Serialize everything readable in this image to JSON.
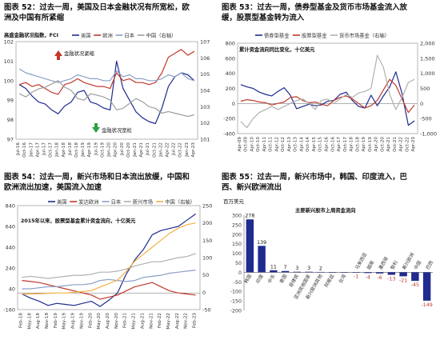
{
  "panel_tl": {
    "caption": [
      "图表 52：过去一周，美国及日本金融状况有所宽松，欧",
      "洲及中国有所紧缩"
    ],
    "subtitle": "高盛金融状况指数，FCI",
    "legend": [
      "美国",
      "欧洲",
      "日本",
      "中国（右轴）"
    ],
    "ann_top": "金融状况紧缩",
    "ann_bottom": "金融状况宽松",
    "colors": [
      "#1f2b8e",
      "#c0392b",
      "#8aa0c8",
      "#9e9e9e"
    ]
  },
  "panel_tr": {
    "caption": [
      "图表 53：过去一周，债券型基金及货币市场基金流入放",
      "缓，股票型基金转为流入"
    ],
    "subtitle": "累计资金流向同比变化，十亿美元",
    "legend": [
      "债券型基金",
      "股票型基金",
      "货币市场基金（右轴）"
    ],
    "colors": [
      "#1f2b8e",
      "#c0392b",
      "#b0b0b0"
    ]
  },
  "panel_bl": {
    "caption": [
      "图表 54：过去一周，新兴市场和日本流出放缓，中国和",
      "欧洲流出加速，美国流入加速"
    ],
    "subtitle": "2015年以来，股票型基金累计资金流向，十亿美元",
    "legend": [
      "美国",
      "发达欧洲",
      "日本",
      "新兴市场",
      "中国（右轴）"
    ],
    "colors": [
      "#1f2b8e",
      "#c0392b",
      "#8aa0c8",
      "#b0b0b0",
      "#f5b041"
    ]
  },
  "panel_br": {
    "caption": [
      "图表 55：过去一周，新兴市场中，韩国、印度流入，巴",
      "西、新兴欧洲流出"
    ],
    "unit": "百万美元",
    "subtitle": "主要新兴股市上周资金流向"
  },
  "chart_data": [
    {
      "type": "line",
      "title": "高盛金融状况指数，FCI",
      "x_ticks": [
        "Jul-16",
        "Oct-16",
        "Jan-17",
        "Apr-17",
        "Jul-17",
        "Oct-17",
        "Jan-18",
        "Apr-18",
        "Jul-18",
        "Oct-18",
        "Jan-19",
        "Apr-19",
        "Jul-19",
        "Oct-19",
        "Jan-20",
        "Apr-20",
        "Jul-20",
        "Oct-20",
        "Jan-21",
        "Apr-21",
        "Jul-21",
        "Oct-21",
        "Jan-22",
        "Apr-22",
        "Jul-22",
        "Oct-22",
        "Jan-23",
        "Apr-23"
      ],
      "ylim": [
        97,
        102
      ],
      "y_ticks": [
        97,
        98,
        99,
        100,
        101,
        102
      ],
      "y2lim": [
        101,
        107
      ],
      "y2_ticks": [
        101,
        102,
        103,
        104,
        105,
        106,
        107
      ],
      "series": [
        {
          "name": "美国",
          "values": [
            99.8,
            99.6,
            99.2,
            98.9,
            98.8,
            98.5,
            98.3,
            98.7,
            98.9,
            99.4,
            99.5,
            98.9,
            98.8,
            98.6,
            98.5,
            101.0,
            99.6,
            99.0,
            98.4,
            98.1,
            97.9,
            97.8,
            98.6,
            99.7,
            100.2,
            100.4,
            100.3,
            100.0
          ]
        },
        {
          "name": "欧洲",
          "values": [
            99.8,
            99.9,
            99.7,
            99.8,
            99.6,
            99.4,
            99.3,
            99.8,
            99.9,
            100.1,
            99.9,
            99.8,
            99.7,
            99.7,
            99.6,
            100.4,
            100.0,
            100.1,
            99.9,
            99.9,
            99.8,
            99.9,
            100.4,
            101.2,
            101.4,
            101.6,
            101.3,
            101.5
          ]
        },
        {
          "name": "日本",
          "values": [
            100.6,
            100.4,
            100.3,
            100.2,
            100.1,
            100.0,
            99.9,
            100.0,
            100.1,
            100.3,
            100.2,
            100.1,
            100.1,
            100.0,
            100.0,
            100.5,
            100.2,
            100.3,
            100.1,
            100.1,
            100.0,
            100.0,
            100.1,
            100.3,
            100.2,
            100.4,
            100.1,
            100.0
          ]
        },
        {
          "name": "中国（右轴）",
          "values": [
            103.8,
            103.6,
            103.9,
            104.1,
            104.2,
            104.4,
            104.6,
            104.2,
            104.0,
            103.5,
            103.4,
            103.8,
            103.7,
            103.6,
            103.4,
            102.8,
            102.9,
            103.2,
            103.5,
            103.3,
            103.0,
            102.9,
            102.6,
            102.7,
            102.6,
            102.5,
            102.4,
            102.5
          ]
        }
      ]
    },
    {
      "type": "line",
      "title": "累计资金流向同比变化，十亿美元",
      "x_ticks": [
        "Apr-09",
        "Oct-09",
        "Apr-10",
        "Oct-10",
        "Apr-11",
        "Oct-11",
        "Apr-12",
        "Oct-12",
        "Apr-13",
        "Oct-13",
        "Apr-14",
        "Oct-14",
        "Apr-15",
        "Oct-15",
        "Apr-16",
        "Oct-16",
        "Apr-17",
        "Oct-17",
        "Apr-18",
        "Oct-18",
        "Apr-19",
        "Oct-19",
        "Apr-20",
        "Oct-20",
        "Apr-21",
        "Oct-21",
        "Apr-22",
        "Oct-22",
        "Apr-23"
      ],
      "ylim": [
        -400,
        800
      ],
      "y_ticks": [
        -400,
        -200,
        0,
        200,
        400,
        600,
        800
      ],
      "y2lim": [
        -1000,
        2000
      ],
      "y2_ticks": [
        -1000,
        -500,
        0,
        500,
        1000,
        1500,
        2000
      ],
      "series": [
        {
          "name": "债券型基金",
          "values": [
            250,
            220,
            200,
            150,
            120,
            100,
            160,
            210,
            110,
            -70,
            -40,
            -10,
            -30,
            -20,
            30,
            40,
            120,
            150,
            40,
            -40,
            -60,
            110,
            -30,
            100,
            220,
            420,
            130,
            -290,
            -230
          ]
        },
        {
          "name": "股票型基金",
          "values": [
            30,
            50,
            40,
            20,
            10,
            -20,
            0,
            20,
            80,
            90,
            40,
            10,
            20,
            -10,
            -30,
            40,
            80,
            100,
            60,
            0,
            -60,
            -30,
            40,
            180,
            320,
            240,
            60,
            -120,
            -20
          ]
        },
        {
          "name": "货币市场基金（右轴）",
          "values": [
            -600,
            -800,
            -500,
            -300,
            -200,
            -100,
            -200,
            -100,
            0,
            100,
            150,
            0,
            -200,
            100,
            150,
            0,
            150,
            300,
            200,
            350,
            400,
            500,
            1600,
            1200,
            300,
            -200,
            200,
            700,
            800
          ]
        }
      ]
    },
    {
      "type": "line",
      "title": "2015年以来，股票型基金累计资金流向，十亿美元",
      "x_ticks": [
        "Feb-18",
        "May-18",
        "Aug-18",
        "Nov-18",
        "Feb-19",
        "May-19",
        "Aug-19",
        "Nov-19",
        "Feb-20",
        "May-20",
        "Aug-20",
        "Nov-20",
        "Feb-21",
        "May-21",
        "Aug-21",
        "Nov-21",
        "Feb-22",
        "May-22",
        "Aug-22",
        "Nov-22",
        "Feb-23"
      ],
      "ylim": [
        -160,
        840
      ],
      "y_ticks": [
        -160,
        40,
        240,
        440,
        640,
        840
      ],
      "y2lim": [
        -50,
        250
      ],
      "y2_ticks": [
        -50,
        0,
        50,
        100,
        150,
        200,
        250
      ],
      "series": [
        {
          "name": "美国",
          "values": [
            -10,
            -50,
            -80,
            -120,
            -100,
            -110,
            -120,
            -100,
            -80,
            -130,
            -70,
            0,
            180,
            320,
            420,
            560,
            600,
            620,
            640,
            700,
            760
          ]
        },
        {
          "name": "发达欧洲",
          "values": [
            120,
            110,
            100,
            80,
            60,
            40,
            20,
            0,
            -20,
            -60,
            -40,
            -20,
            20,
            60,
            80,
            100,
            60,
            20,
            0,
            -10,
            -20
          ]
        },
        {
          "name": "日本",
          "values": [
            40,
            40,
            50,
            60,
            60,
            70,
            80,
            80,
            90,
            120,
            130,
            120,
            110,
            120,
            150,
            160,
            170,
            190,
            200,
            210,
            220
          ]
        },
        {
          "name": "新兴市场",
          "values": [
            150,
            160,
            150,
            140,
            150,
            160,
            170,
            170,
            180,
            200,
            200,
            210,
            230,
            260,
            280,
            300,
            300,
            320,
            340,
            350,
            380
          ]
        },
        {
          "name": "中国（右轴）",
          "values": [
            -5,
            -5,
            -4,
            -3,
            -2,
            -2,
            0,
            2,
            5,
            15,
            25,
            35,
            60,
            90,
            110,
            130,
            150,
            170,
            185,
            195,
            200
          ]
        }
      ]
    },
    {
      "type": "bar",
      "title": "主要新兴股市上周资金流向",
      "ylabel": "百万美元",
      "y_ticks": [
        -200,
        -150,
        -100,
        -50,
        0,
        50,
        100,
        150,
        200,
        250,
        300
      ],
      "ylim": [
        -200,
        300
      ],
      "categories": [
        "韩国",
        "印度",
        "中东",
        "泰国",
        "菲律宾",
        "亚洲其他国家",
        "新兴欧洲其他",
        "阿根廷",
        "台湾",
        "马来西亚",
        "越南",
        "墨西哥",
        "智利",
        "新兴欧洲",
        "中国",
        "巴西"
      ],
      "values": [
        278,
        139,
        11,
        7,
        3,
        3,
        2,
        0,
        0,
        -1,
        -4,
        -6,
        -13,
        -21,
        -45,
        -149
      ],
      "labels": [
        "278",
        "139",
        "11",
        "7",
        "3",
        "3",
        "2",
        "",
        "",
        "-1",
        "-4",
        "-6",
        "-13",
        "-21",
        "-45",
        "-149"
      ]
    }
  ]
}
